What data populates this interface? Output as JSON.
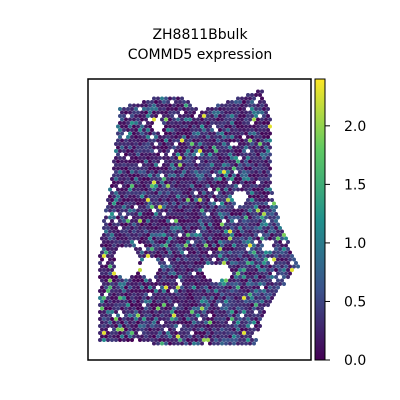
{
  "chart_data": {
    "type": "scatter",
    "title_line1": "ZH8811Bbulk",
    "title_line2": "COMMD5 expression",
    "xlabel": "",
    "ylabel": "",
    "colormap": "viridis",
    "colorbar": {
      "min": 0.0,
      "max": 2.4,
      "ticks": [
        0.0,
        0.5,
        1.0,
        1.5,
        2.0
      ],
      "tick_labels": [
        "0.0",
        "0.5",
        "1.0",
        "1.5",
        "2.0"
      ]
    },
    "grid": false,
    "axes_ticks_visible": false,
    "marker": "hexagon",
    "value_distribution": "mostly 0.0–0.6 (dark purple), scattered spots 1.0–2.3 (teal to yellow-green)"
  },
  "colors": {
    "viridis_0": "#440154",
    "viridis_25": "#3b528b",
    "viridis_50": "#21918c",
    "viridis_75": "#5ec962",
    "viridis_100": "#fde725"
  }
}
